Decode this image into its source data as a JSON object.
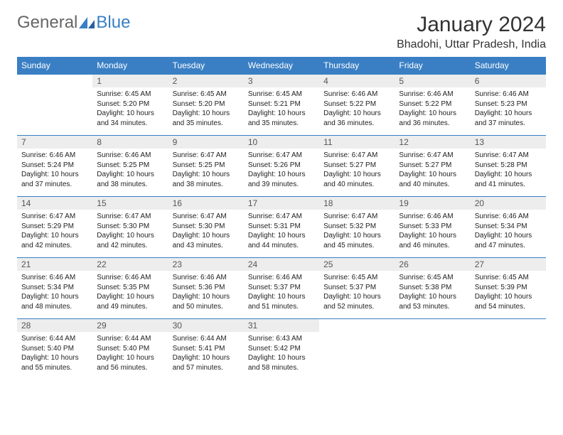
{
  "brand": {
    "part1": "General",
    "part2": "Blue"
  },
  "title": "January 2024",
  "location": "Bhadohi, Uttar Pradesh, India",
  "colors": {
    "header_bg": "#3a7fc4",
    "header_text": "#ffffff",
    "daynum_bg": "#ededed",
    "row_border": "#3a7fc4",
    "page_bg": "#ffffff",
    "text": "#222222"
  },
  "weekdays": [
    "Sunday",
    "Monday",
    "Tuesday",
    "Wednesday",
    "Thursday",
    "Friday",
    "Saturday"
  ],
  "weeks": [
    [
      null,
      {
        "n": "1",
        "sr": "Sunrise: 6:45 AM",
        "ss": "Sunset: 5:20 PM",
        "dl": "Daylight: 10 hours and 34 minutes."
      },
      {
        "n": "2",
        "sr": "Sunrise: 6:45 AM",
        "ss": "Sunset: 5:20 PM",
        "dl": "Daylight: 10 hours and 35 minutes."
      },
      {
        "n": "3",
        "sr": "Sunrise: 6:45 AM",
        "ss": "Sunset: 5:21 PM",
        "dl": "Daylight: 10 hours and 35 minutes."
      },
      {
        "n": "4",
        "sr": "Sunrise: 6:46 AM",
        "ss": "Sunset: 5:22 PM",
        "dl": "Daylight: 10 hours and 36 minutes."
      },
      {
        "n": "5",
        "sr": "Sunrise: 6:46 AM",
        "ss": "Sunset: 5:22 PM",
        "dl": "Daylight: 10 hours and 36 minutes."
      },
      {
        "n": "6",
        "sr": "Sunrise: 6:46 AM",
        "ss": "Sunset: 5:23 PM",
        "dl": "Daylight: 10 hours and 37 minutes."
      }
    ],
    [
      {
        "n": "7",
        "sr": "Sunrise: 6:46 AM",
        "ss": "Sunset: 5:24 PM",
        "dl": "Daylight: 10 hours and 37 minutes."
      },
      {
        "n": "8",
        "sr": "Sunrise: 6:46 AM",
        "ss": "Sunset: 5:25 PM",
        "dl": "Daylight: 10 hours and 38 minutes."
      },
      {
        "n": "9",
        "sr": "Sunrise: 6:47 AM",
        "ss": "Sunset: 5:25 PM",
        "dl": "Daylight: 10 hours and 38 minutes."
      },
      {
        "n": "10",
        "sr": "Sunrise: 6:47 AM",
        "ss": "Sunset: 5:26 PM",
        "dl": "Daylight: 10 hours and 39 minutes."
      },
      {
        "n": "11",
        "sr": "Sunrise: 6:47 AM",
        "ss": "Sunset: 5:27 PM",
        "dl": "Daylight: 10 hours and 40 minutes."
      },
      {
        "n": "12",
        "sr": "Sunrise: 6:47 AM",
        "ss": "Sunset: 5:27 PM",
        "dl": "Daylight: 10 hours and 40 minutes."
      },
      {
        "n": "13",
        "sr": "Sunrise: 6:47 AM",
        "ss": "Sunset: 5:28 PM",
        "dl": "Daylight: 10 hours and 41 minutes."
      }
    ],
    [
      {
        "n": "14",
        "sr": "Sunrise: 6:47 AM",
        "ss": "Sunset: 5:29 PM",
        "dl": "Daylight: 10 hours and 42 minutes."
      },
      {
        "n": "15",
        "sr": "Sunrise: 6:47 AM",
        "ss": "Sunset: 5:30 PM",
        "dl": "Daylight: 10 hours and 42 minutes."
      },
      {
        "n": "16",
        "sr": "Sunrise: 6:47 AM",
        "ss": "Sunset: 5:30 PM",
        "dl": "Daylight: 10 hours and 43 minutes."
      },
      {
        "n": "17",
        "sr": "Sunrise: 6:47 AM",
        "ss": "Sunset: 5:31 PM",
        "dl": "Daylight: 10 hours and 44 minutes."
      },
      {
        "n": "18",
        "sr": "Sunrise: 6:47 AM",
        "ss": "Sunset: 5:32 PM",
        "dl": "Daylight: 10 hours and 45 minutes."
      },
      {
        "n": "19",
        "sr": "Sunrise: 6:46 AM",
        "ss": "Sunset: 5:33 PM",
        "dl": "Daylight: 10 hours and 46 minutes."
      },
      {
        "n": "20",
        "sr": "Sunrise: 6:46 AM",
        "ss": "Sunset: 5:34 PM",
        "dl": "Daylight: 10 hours and 47 minutes."
      }
    ],
    [
      {
        "n": "21",
        "sr": "Sunrise: 6:46 AM",
        "ss": "Sunset: 5:34 PM",
        "dl": "Daylight: 10 hours and 48 minutes."
      },
      {
        "n": "22",
        "sr": "Sunrise: 6:46 AM",
        "ss": "Sunset: 5:35 PM",
        "dl": "Daylight: 10 hours and 49 minutes."
      },
      {
        "n": "23",
        "sr": "Sunrise: 6:46 AM",
        "ss": "Sunset: 5:36 PM",
        "dl": "Daylight: 10 hours and 50 minutes."
      },
      {
        "n": "24",
        "sr": "Sunrise: 6:46 AM",
        "ss": "Sunset: 5:37 PM",
        "dl": "Daylight: 10 hours and 51 minutes."
      },
      {
        "n": "25",
        "sr": "Sunrise: 6:45 AM",
        "ss": "Sunset: 5:37 PM",
        "dl": "Daylight: 10 hours and 52 minutes."
      },
      {
        "n": "26",
        "sr": "Sunrise: 6:45 AM",
        "ss": "Sunset: 5:38 PM",
        "dl": "Daylight: 10 hours and 53 minutes."
      },
      {
        "n": "27",
        "sr": "Sunrise: 6:45 AM",
        "ss": "Sunset: 5:39 PM",
        "dl": "Daylight: 10 hours and 54 minutes."
      }
    ],
    [
      {
        "n": "28",
        "sr": "Sunrise: 6:44 AM",
        "ss": "Sunset: 5:40 PM",
        "dl": "Daylight: 10 hours and 55 minutes."
      },
      {
        "n": "29",
        "sr": "Sunrise: 6:44 AM",
        "ss": "Sunset: 5:40 PM",
        "dl": "Daylight: 10 hours and 56 minutes."
      },
      {
        "n": "30",
        "sr": "Sunrise: 6:44 AM",
        "ss": "Sunset: 5:41 PM",
        "dl": "Daylight: 10 hours and 57 minutes."
      },
      {
        "n": "31",
        "sr": "Sunrise: 6:43 AM",
        "ss": "Sunset: 5:42 PM",
        "dl": "Daylight: 10 hours and 58 minutes."
      },
      null,
      null,
      null
    ]
  ]
}
